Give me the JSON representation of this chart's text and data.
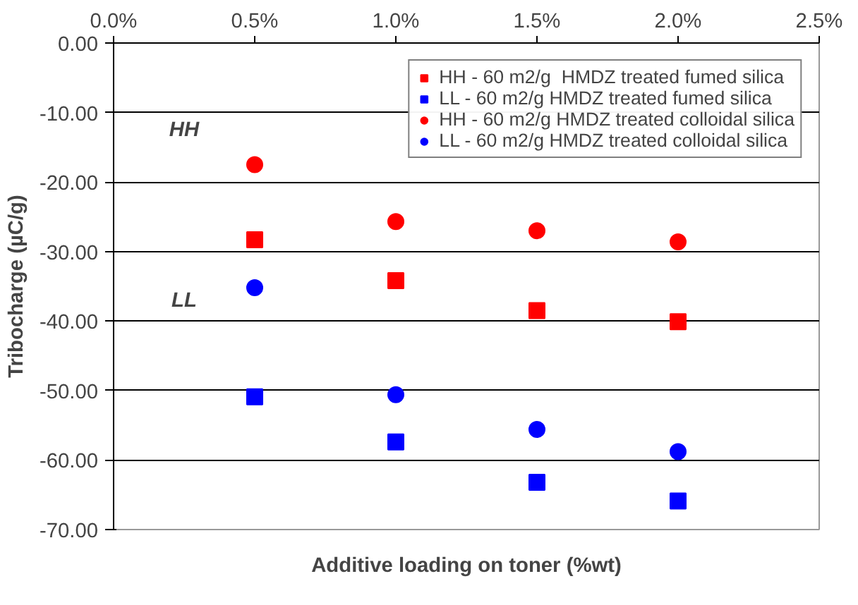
{
  "chart_data": {
    "type": "scatter",
    "xlabel": "Additive loading on toner (%wt)",
    "ylabel": "Tribocharge (µC/g)",
    "x": [
      0.005,
      0.01,
      0.015,
      0.02
    ],
    "series": [
      {
        "name": "HH - 60 m2/g  HMDZ treated fumed silica",
        "color": "#ff0000",
        "marker": "square",
        "values": [
          -28.3,
          -34.2,
          -38.5,
          -40.1
        ]
      },
      {
        "name": "LL - 60 m2/g HMDZ treated fumed silica",
        "color": "#0000ff",
        "marker": "square",
        "values": [
          -50.9,
          -57.4,
          -63.2,
          -65.9
        ]
      },
      {
        "name": "HH - 60 m2/g HMDZ treated colloidal silica",
        "color": "#ff0000",
        "marker": "circle",
        "values": [
          -17.5,
          -25.7,
          -27.0,
          -28.6
        ]
      },
      {
        "name": "LL - 60 m2/g HMDZ treated colloidal silica",
        "color": "#0000ff",
        "marker": "circle",
        "values": [
          -35.2,
          -50.6,
          -55.6,
          -58.8
        ]
      }
    ],
    "annotations": [
      "HH",
      "LL"
    ],
    "xlim": [
      0,
      0.025
    ],
    "xticks": [
      {
        "value": 0,
        "label": "0.0%"
      },
      {
        "value": 0.005,
        "label": "0.5%"
      },
      {
        "value": 0.01,
        "label": "1.0%"
      },
      {
        "value": 0.015,
        "label": "1.5%"
      },
      {
        "value": 0.02,
        "label": "2.0%"
      },
      {
        "value": 0.025,
        "label": "2.5%"
      }
    ],
    "ylim": [
      -70,
      0
    ],
    "yticks": [
      {
        "value": -70,
        "label": "-70.00"
      },
      {
        "value": -60,
        "label": "-60.00"
      },
      {
        "value": -50,
        "label": "-50.00"
      },
      {
        "value": -40,
        "label": "-40.00"
      },
      {
        "value": -30,
        "label": "-30.00"
      },
      {
        "value": -20,
        "label": "-20.00"
      },
      {
        "value": -10,
        "label": "-10.00"
      },
      {
        "value": 0,
        "label": "0.00"
      }
    ],
    "grid": "y",
    "legend": "top right"
  }
}
